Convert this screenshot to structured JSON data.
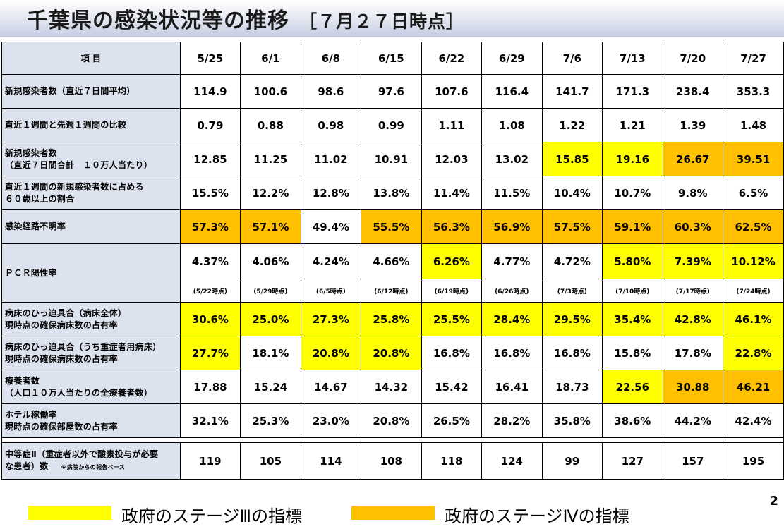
{
  "header": {
    "title": "千葉県の感染状況等の推移",
    "date": "［７月２７日時点］"
  },
  "table": {
    "corner_label": "項 目",
    "dates": [
      "5/25",
      "6/1",
      "6/8",
      "6/15",
      "6/22",
      "6/29",
      "7/6",
      "7/13",
      "7/20",
      "7/27"
    ],
    "rows": {
      "new_cases_avg": {
        "label1": "新規感染者数（直近７日間平均）",
        "values": [
          "114.9",
          "100.6",
          "98.6",
          "97.6",
          "107.6",
          "116.4",
          "141.7",
          "171.3",
          "238.4",
          "353.3"
        ]
      },
      "week_ratio": {
        "label1": "直近１週間と先週１週間の比較",
        "values": [
          "0.79",
          "0.88",
          "0.98",
          "0.99",
          "1.11",
          "1.08",
          "1.22",
          "1.21",
          "1.39",
          "1.48"
        ]
      },
      "new_cases_per100k": {
        "label1": "新規感染者数",
        "label2": "（直近７日間合計　１０万人当たり）",
        "values": [
          "12.85",
          "11.25",
          "11.02",
          "10.91",
          "12.03",
          "13.02",
          "15.85",
          "19.16",
          "26.67",
          "39.51"
        ],
        "levels": [
          "",
          "",
          "",
          "",
          "",
          "",
          "y",
          "y",
          "o",
          "o"
        ]
      },
      "over60_share": {
        "label1": "直近１週間の新規感染者数に占める",
        "label2": "６０歳以上の割合",
        "values": [
          "15.5%",
          "12.2%",
          "12.8%",
          "13.8%",
          "11.4%",
          "11.5%",
          "10.4%",
          "10.7%",
          "9.8%",
          "6.5%"
        ]
      },
      "unknown_route": {
        "label1": "感染経路不明率",
        "values": [
          "57.3%",
          "57.1%",
          "49.4%",
          "55.5%",
          "56.3%",
          "56.9%",
          "57.5%",
          "59.1%",
          "60.3%",
          "62.5%"
        ],
        "levels": [
          "o",
          "o",
          "",
          "o",
          "o",
          "o",
          "o",
          "o",
          "o",
          "o"
        ]
      },
      "pcr_positive": {
        "label1": "ＰＣＲ陽性率",
        "values": [
          "4.37%",
          "4.06%",
          "4.24%",
          "4.66%",
          "6.26%",
          "4.77%",
          "4.72%",
          "5.80%",
          "7.39%",
          "10.12%"
        ],
        "levels": [
          "",
          "",
          "",
          "",
          "y",
          "",
          "",
          "y",
          "y",
          "y"
        ],
        "as_of": [
          "(5/22時点)",
          "(5/29時点)",
          "(6/5時点)",
          "(6/12時点)",
          "(6/19時点)",
          "(6/26時点)",
          "(7/3時点)",
          "(7/10時点)",
          "(7/17時点)",
          "(7/24時点)"
        ]
      },
      "bed_all": {
        "label1": "病床のひっ迫具合（病床全体）",
        "label2": " 現時点の確保病床数の占有率",
        "values": [
          "30.6%",
          "25.0%",
          "27.3%",
          "25.8%",
          "25.5%",
          "28.4%",
          "29.5%",
          "35.4%",
          "42.8%",
          "46.1%"
        ],
        "levels": [
          "y",
          "y",
          "y",
          "y",
          "y",
          "y",
          "y",
          "y",
          "y",
          "y"
        ]
      },
      "bed_severe": {
        "label1": "病床のひっ迫具合（うち重症者用病床）",
        "label2": " 現時点の確保病床数の占有率",
        "values": [
          "27.7%",
          "18.1%",
          "20.8%",
          "20.8%",
          "16.8%",
          "16.8%",
          "16.8%",
          "15.8%",
          "17.8%",
          "22.8%"
        ],
        "levels": [
          "y",
          "",
          "y",
          "y",
          "",
          "",
          "",
          "",
          "",
          "y"
        ]
      },
      "recuperating": {
        "label1": "療養者数",
        "label2": "（人口１０万人当たりの全療養者数）",
        "values": [
          "17.88",
          "15.24",
          "14.67",
          "14.32",
          "15.42",
          "16.41",
          "18.73",
          "22.56",
          "30.88",
          "46.21"
        ],
        "levels": [
          "",
          "",
          "",
          "",
          "",
          "",
          "",
          "y",
          "o",
          "o"
        ]
      },
      "hotel": {
        "label1": "ホテル稼働率",
        "label2": " 現時点の確保部屋数の占有率",
        "values": [
          "32.1%",
          "25.3%",
          "23.0%",
          "20.8%",
          "26.5%",
          "28.2%",
          "35.8%",
          "38.6%",
          "44.2%",
          "42.4%"
        ]
      },
      "moderate": {
        "label1": "中等症Ⅱ（重症者以外で酸素投与が必要",
        "label2": "な患者）数",
        "note": "※病院からの報告ベース",
        "values": [
          "119",
          "105",
          "114",
          "108",
          "118",
          "124",
          "99",
          "127",
          "157",
          "195"
        ]
      }
    }
  },
  "legend": {
    "stage3": {
      "label": "政府のステージⅢの指標",
      "color": "#ffff00"
    },
    "stage4": {
      "label": "政府のステージⅣの指標",
      "color": "#ffc000"
    }
  },
  "page_number": "2"
}
